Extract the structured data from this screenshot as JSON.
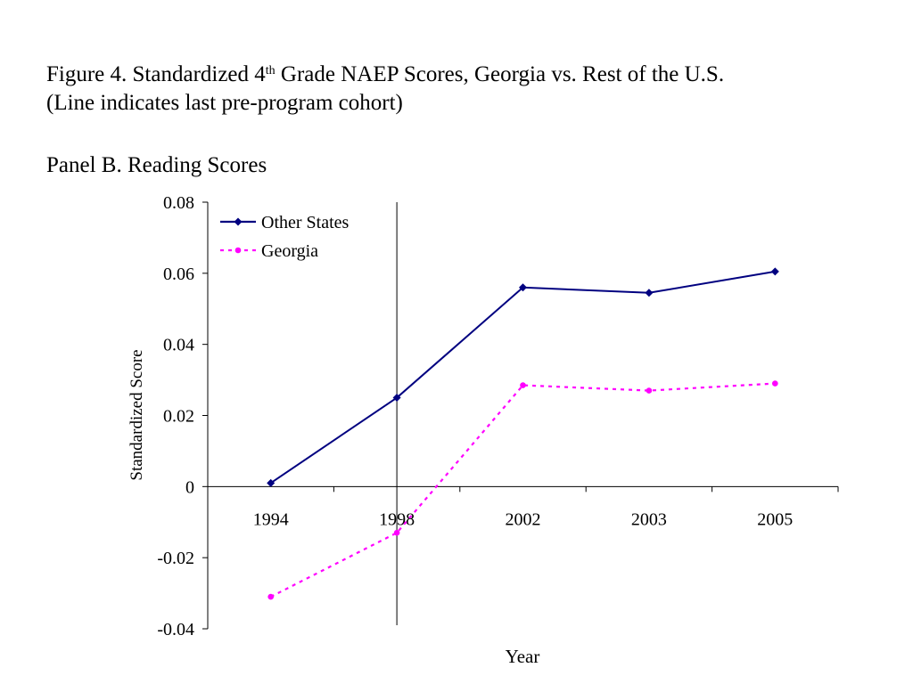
{
  "figure": {
    "title_prefix": "Figure 4.  Standardized 4",
    "title_sup": "th",
    "title_suffix": " Grade NAEP Scores, Georgia vs. Rest of the U.S.",
    "subtitle": "(Line indicates last pre-program cohort)",
    "panel": "Panel B.  Reading Scores"
  },
  "chart_data": {
    "type": "line",
    "title": "Panel B.  Reading Scores",
    "xlabel": "Year",
    "ylabel": "Standardized Score",
    "categories": [
      "1994",
      "1998",
      "2002",
      "2003",
      "2005"
    ],
    "ylim": [
      -0.04,
      0.08
    ],
    "yticks": [
      -0.04,
      -0.02,
      0,
      0.02,
      0.04,
      0.06,
      0.08
    ],
    "ytick_labels": [
      "-0.04",
      "-0.02",
      "0",
      "0.02",
      "0.04",
      "0.06",
      "0.08"
    ],
    "grid": false,
    "legend_position": "top-left",
    "reference_line": {
      "category": "1998"
    },
    "series": [
      {
        "name": "Other States",
        "values": [
          0.001,
          0.025,
          0.056,
          0.0545,
          0.0605
        ],
        "color": "#000080",
        "marker": "diamond",
        "style": "solid"
      },
      {
        "name": "Georgia",
        "values": [
          -0.031,
          -0.013,
          0.0285,
          0.027,
          0.029
        ],
        "color": "#ff00ff",
        "marker": "circle",
        "style": "dashed"
      }
    ]
  }
}
